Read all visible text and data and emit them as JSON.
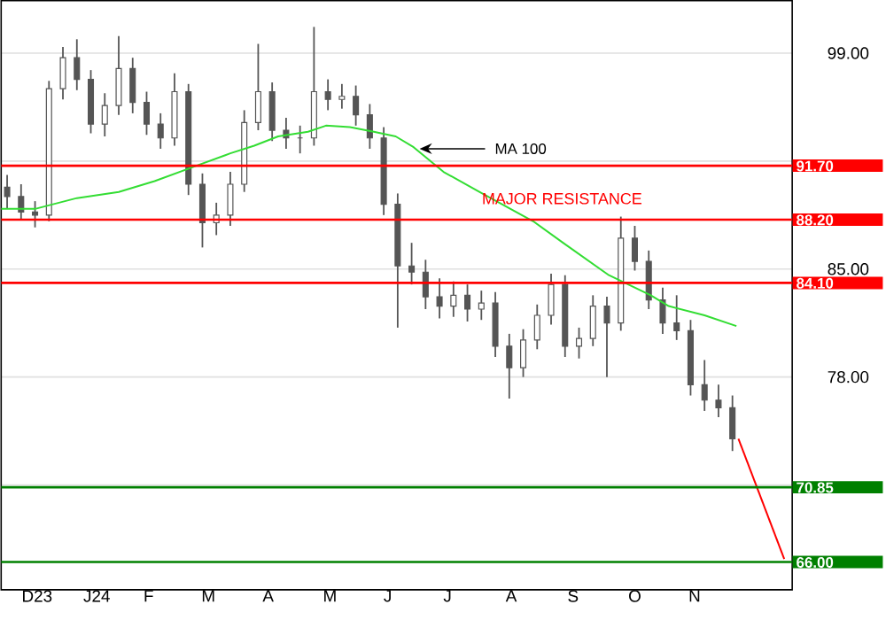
{
  "chart_data": {
    "type": "candlestick",
    "xlim": [
      "2023-11-24",
      "2024-12-25"
    ],
    "ylim": [
      64.2,
      102.4
    ],
    "xticks": [
      {
        "value": "2023-12-12",
        "label": "D23"
      },
      {
        "value": "2024-01-11",
        "label": "J24"
      },
      {
        "value": "2024-02-06",
        "label": "F"
      },
      {
        "value": "2024-03-07",
        "label": "M"
      },
      {
        "value": "2024-04-06",
        "label": "A"
      },
      {
        "value": "2024-05-07",
        "label": "M"
      },
      {
        "value": "2024-06-05",
        "label": "J"
      },
      {
        "value": "2024-07-05",
        "label": "J"
      },
      {
        "value": "2024-08-06",
        "label": "A"
      },
      {
        "value": "2024-09-06",
        "label": "S"
      },
      {
        "value": "2024-10-07",
        "label": "O"
      },
      {
        "value": "2024-11-06",
        "label": "N"
      }
    ],
    "yticks": [
      {
        "value": 99,
        "label": "99.00"
      },
      {
        "value": 92,
        "label": null
      },
      {
        "value": 85,
        "label": "85.00"
      },
      {
        "value": 78,
        "label": "78.00"
      },
      {
        "value": 71,
        "label": null
      }
    ],
    "grid": "y",
    "series": [
      {
        "type": "candlestick",
        "color": "#555555",
        "x": [
          "2023-11-27",
          "2023-12-04",
          "2023-12-11",
          "2023-12-18",
          "2023-12-25",
          "2024-01-01",
          "2024-01-08",
          "2024-01-15",
          "2024-01-22",
          "2024-01-29",
          "2024-02-05",
          "2024-02-12",
          "2024-02-19",
          "2024-02-26",
          "2024-03-04",
          "2024-03-11",
          "2024-03-18",
          "2024-03-25",
          "2024-04-01",
          "2024-04-08",
          "2024-04-15",
          "2024-04-22",
          "2024-04-29",
          "2024-05-06",
          "2024-05-13",
          "2024-05-20",
          "2024-05-27",
          "2024-06-03",
          "2024-06-10",
          "2024-06-17",
          "2024-06-24",
          "2024-07-01",
          "2024-07-08",
          "2024-07-15",
          "2024-07-22",
          "2024-07-29",
          "2024-08-05",
          "2024-08-12",
          "2024-08-19",
          "2024-08-26",
          "2024-09-02",
          "2024-09-09",
          "2024-09-16",
          "2024-09-23",
          "2024-09-30",
          "2024-10-07",
          "2024-10-14",
          "2024-10-21",
          "2024-10-28",
          "2024-11-04",
          "2024-11-11",
          "2024-11-18",
          "2024-11-25"
        ],
        "ohlc": [
          [
            90.3,
            91.1,
            88.9,
            89.7
          ],
          [
            89.7,
            90.5,
            88.2,
            88.7
          ],
          [
            88.7,
            89.4,
            87.7,
            88.5
          ],
          [
            88.5,
            97.2,
            88.1,
            96.7
          ],
          [
            96.7,
            99.4,
            96.0,
            98.7
          ],
          [
            98.7,
            99.9,
            96.6,
            97.3
          ],
          [
            97.3,
            97.9,
            93.8,
            94.4
          ],
          [
            94.4,
            96.4,
            93.6,
            95.6
          ],
          [
            95.6,
            100.1,
            95.0,
            98.0
          ],
          [
            98.0,
            98.7,
            95.1,
            95.8
          ],
          [
            95.8,
            96.5,
            93.7,
            94.4
          ],
          [
            94.4,
            95.1,
            92.8,
            93.5
          ],
          [
            93.5,
            97.7,
            93.0,
            96.5
          ],
          [
            96.5,
            97.0,
            89.8,
            90.5
          ],
          [
            90.5,
            91.2,
            86.4,
            88.0
          ],
          [
            88.0,
            89.3,
            87.2,
            88.5
          ],
          [
            88.5,
            91.3,
            87.8,
            90.5
          ],
          [
            90.5,
            95.3,
            90.0,
            94.5
          ],
          [
            94.5,
            99.6,
            94.0,
            96.5
          ],
          [
            96.5,
            97.1,
            93.3,
            94.0
          ],
          [
            94.0,
            94.8,
            92.8,
            93.5
          ],
          [
            93.5,
            94.3,
            92.5,
            93.5
          ],
          [
            93.5,
            100.7,
            93.0,
            96.5
          ],
          [
            96.5,
            97.3,
            95.3,
            96.0
          ],
          [
            96.0,
            97.0,
            95.4,
            96.2
          ],
          [
            96.2,
            96.9,
            94.3,
            95.0
          ],
          [
            95.0,
            95.7,
            92.8,
            93.5
          ],
          [
            93.5,
            94.2,
            88.5,
            89.2
          ],
          [
            89.2,
            89.9,
            81.2,
            85.2
          ],
          [
            85.2,
            86.7,
            84.0,
            84.8
          ],
          [
            84.8,
            85.6,
            82.4,
            83.2
          ],
          [
            83.2,
            84.4,
            81.8,
            82.6
          ],
          [
            82.6,
            84.2,
            81.9,
            83.3
          ],
          [
            83.3,
            84.0,
            81.6,
            82.4
          ],
          [
            82.4,
            83.6,
            81.7,
            82.8
          ],
          [
            82.8,
            83.5,
            79.3,
            80.0
          ],
          [
            80.0,
            80.8,
            76.6,
            78.6
          ],
          [
            78.6,
            81.1,
            78.0,
            80.4
          ],
          [
            80.4,
            82.7,
            79.8,
            82.0
          ],
          [
            82.0,
            84.7,
            81.4,
            84.0
          ],
          [
            84.0,
            84.6,
            79.3,
            80.0
          ],
          [
            80.0,
            81.2,
            79.2,
            80.5
          ],
          [
            80.5,
            83.3,
            80.0,
            82.6
          ],
          [
            82.6,
            83.2,
            78.0,
            81.5
          ],
          [
            81.5,
            88.4,
            81.0,
            87.0
          ],
          [
            87.0,
            87.8,
            84.9,
            85.5
          ],
          [
            85.5,
            86.2,
            82.4,
            83.0
          ],
          [
            83.0,
            83.8,
            80.8,
            81.5
          ],
          [
            81.5,
            83.3,
            80.4,
            81.0
          ],
          [
            81.0,
            81.7,
            76.8,
            77.5
          ],
          [
            77.5,
            79.1,
            75.8,
            76.5
          ],
          [
            76.5,
            77.5,
            75.4,
            76.0
          ],
          [
            76.0,
            76.8,
            73.2,
            74.0
          ]
        ]
      },
      {
        "type": "line",
        "color": "#33dd33",
        "x": [
          "2023-11-24",
          "2023-12-11",
          "2024-01-01",
          "2024-01-22",
          "2024-02-09",
          "2024-03-01",
          "2024-03-18",
          "2024-03-30",
          "2024-04-11",
          "2024-04-26",
          "2024-05-05",
          "2024-05-17",
          "2024-05-29",
          "2024-06-09",
          "2024-06-18",
          "2024-07-03",
          "2024-07-21",
          "2024-08-17",
          "2024-09-01",
          "2024-09-24",
          "2024-10-15",
          "2024-10-24",
          "2024-11-11",
          "2024-11-27"
        ],
        "values": [
          88.9,
          88.9,
          89.6,
          90.0,
          90.7,
          91.7,
          92.5,
          93.0,
          93.6,
          93.9,
          94.3,
          94.2,
          93.9,
          93.6,
          92.9,
          91.3,
          90.0,
          88.1,
          86.7,
          84.6,
          83.3,
          82.6,
          82.0,
          81.3
        ]
      },
      {
        "type": "line",
        "color": "#ff0000",
        "x": [
          "2024-11-28",
          "2024-12-21"
        ],
        "values": [
          74.0,
          66.2
        ]
      }
    ],
    "ref_lines": [
      {
        "axis": "y",
        "value": 91.7,
        "label": "91.70",
        "color": "#ff0000"
      },
      {
        "axis": "y",
        "value": 88.2,
        "label": "88.20",
        "color": "#ff0000"
      },
      {
        "axis": "y",
        "value": 84.1,
        "label": "84.10",
        "color": "#ff0000"
      },
      {
        "axis": "y",
        "value": 70.85,
        "label": "70.85",
        "color": "#008000"
      },
      {
        "axis": "y",
        "value": 66.0,
        "label": "66.00",
        "color": "#008000"
      }
    ],
    "annotations": [
      {
        "text": "MA 100",
        "x": "2024-06-21",
        "y": 92.8
      },
      "MAJOR RESISTANCE"
    ]
  }
}
